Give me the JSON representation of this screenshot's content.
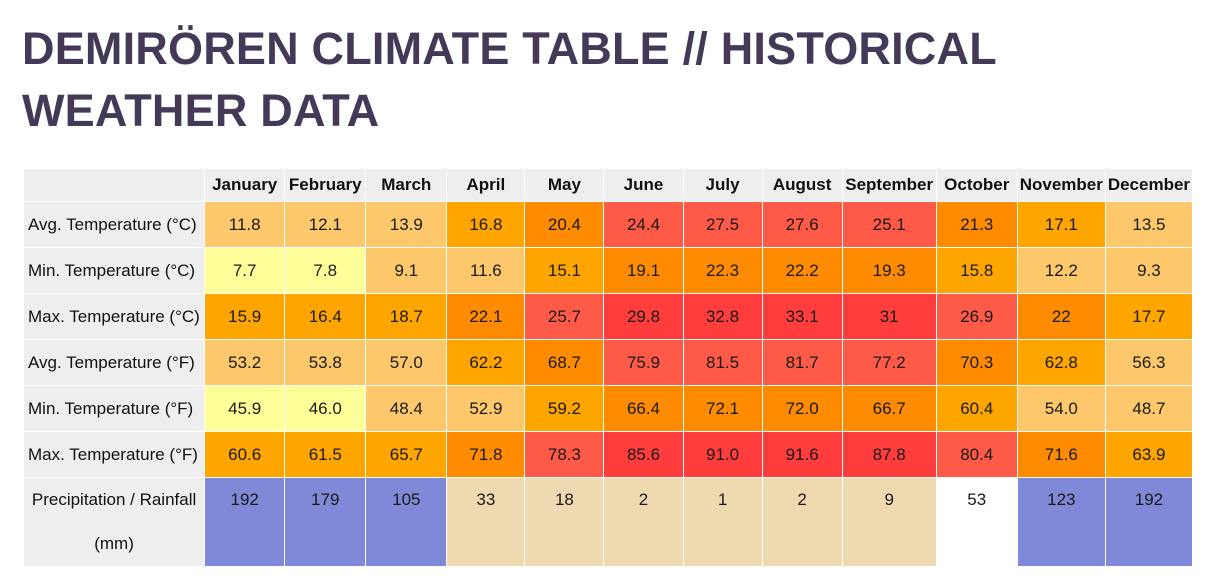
{
  "page": {
    "title": "DEMIRÖREN CLIMATE TABLE // HISTORICAL WEATHER DATA"
  },
  "table": {
    "months": [
      "January",
      "February",
      "March",
      "April",
      "May",
      "June",
      "July",
      "August",
      "September",
      "October",
      "November",
      "December"
    ],
    "rows": [
      {
        "label": "Avg. Temperature (°C)",
        "values": [
          "11.8",
          "12.1",
          "13.9",
          "16.8",
          "20.4",
          "24.4",
          "27.5",
          "27.6",
          "25.1",
          "21.3",
          "17.1",
          "13.5"
        ],
        "colors": [
          "#fdc86c",
          "#fdc86c",
          "#fdc86c",
          "#ffa500",
          "#ff8c00",
          "#ff5a48",
          "#ff5a48",
          "#ff5a48",
          "#ff5a48",
          "#ff8c00",
          "#ffa500",
          "#fdc86c"
        ]
      },
      {
        "label": "Min. Temperature (°C)",
        "values": [
          "7.7",
          "7.8",
          "9.1",
          "11.6",
          "15.1",
          "19.1",
          "22.3",
          "22.2",
          "19.3",
          "15.8",
          "12.2",
          "9.3"
        ],
        "colors": [
          "#ffff99",
          "#ffff99",
          "#fdc86c",
          "#fdc86c",
          "#ffa500",
          "#ff8c00",
          "#ff8c00",
          "#ff8c00",
          "#ff8c00",
          "#ffa500",
          "#fdc86c",
          "#fdc86c"
        ]
      },
      {
        "label": "Max. Temperature (°C)",
        "values": [
          "15.9",
          "16.4",
          "18.7",
          "22.1",
          "25.7",
          "29.8",
          "32.8",
          "33.1",
          "31",
          "26.9",
          "22",
          "17.7"
        ],
        "colors": [
          "#ffa500",
          "#ffa500",
          "#ffa500",
          "#ff8c00",
          "#ff5a48",
          "#ff3d3d",
          "#ff3d3d",
          "#ff3d3d",
          "#ff3d3d",
          "#ff5a48",
          "#ff8c00",
          "#ffa500"
        ]
      },
      {
        "label": "Avg. Temperature (°F)",
        "values": [
          "53.2",
          "53.8",
          "57.0",
          "62.2",
          "68.7",
          "75.9",
          "81.5",
          "81.7",
          "77.2",
          "70.3",
          "62.8",
          "56.3"
        ],
        "colors": [
          "#fdc86c",
          "#fdc86c",
          "#fdc86c",
          "#ffa500",
          "#ff8c00",
          "#ff5a48",
          "#ff5a48",
          "#ff5a48",
          "#ff5a48",
          "#ff8c00",
          "#ffa500",
          "#fdc86c"
        ]
      },
      {
        "label": "Min. Temperature (°F)",
        "values": [
          "45.9",
          "46.0",
          "48.4",
          "52.9",
          "59.2",
          "66.4",
          "72.1",
          "72.0",
          "66.7",
          "60.4",
          "54.0",
          "48.7"
        ],
        "colors": [
          "#ffff99",
          "#ffff99",
          "#fdc86c",
          "#fdc86c",
          "#ffa500",
          "#ff8c00",
          "#ff8c00",
          "#ff8c00",
          "#ff8c00",
          "#ffa500",
          "#fdc86c",
          "#fdc86c"
        ]
      },
      {
        "label": "Max. Temperature (°F)",
        "values": [
          "60.6",
          "61.5",
          "65.7",
          "71.8",
          "78.3",
          "85.6",
          "91.0",
          "91.6",
          "87.8",
          "80.4",
          "71.6",
          "63.9"
        ],
        "colors": [
          "#ffa500",
          "#ffa500",
          "#ffa500",
          "#ff8c00",
          "#ff5a48",
          "#ff3d3d",
          "#ff3d3d",
          "#ff3d3d",
          "#ff3d3d",
          "#ff5a48",
          "#ff8c00",
          "#ffa500"
        ]
      }
    ],
    "precipitation": {
      "label": "Precipitation / Rainfall (mm)",
      "values": [
        "192",
        "179",
        "105",
        "33",
        "18",
        "2",
        "1",
        "2",
        "9",
        "53",
        "123",
        "192"
      ],
      "colors": [
        "#8088d8",
        "#8088d8",
        "#8088d8",
        "#eed9b1",
        "#eed9b1",
        "#eed9b1",
        "#eed9b1",
        "#eed9b1",
        "#eed9b1",
        "#ffffff",
        "#8088d8",
        "#8088d8"
      ]
    }
  }
}
